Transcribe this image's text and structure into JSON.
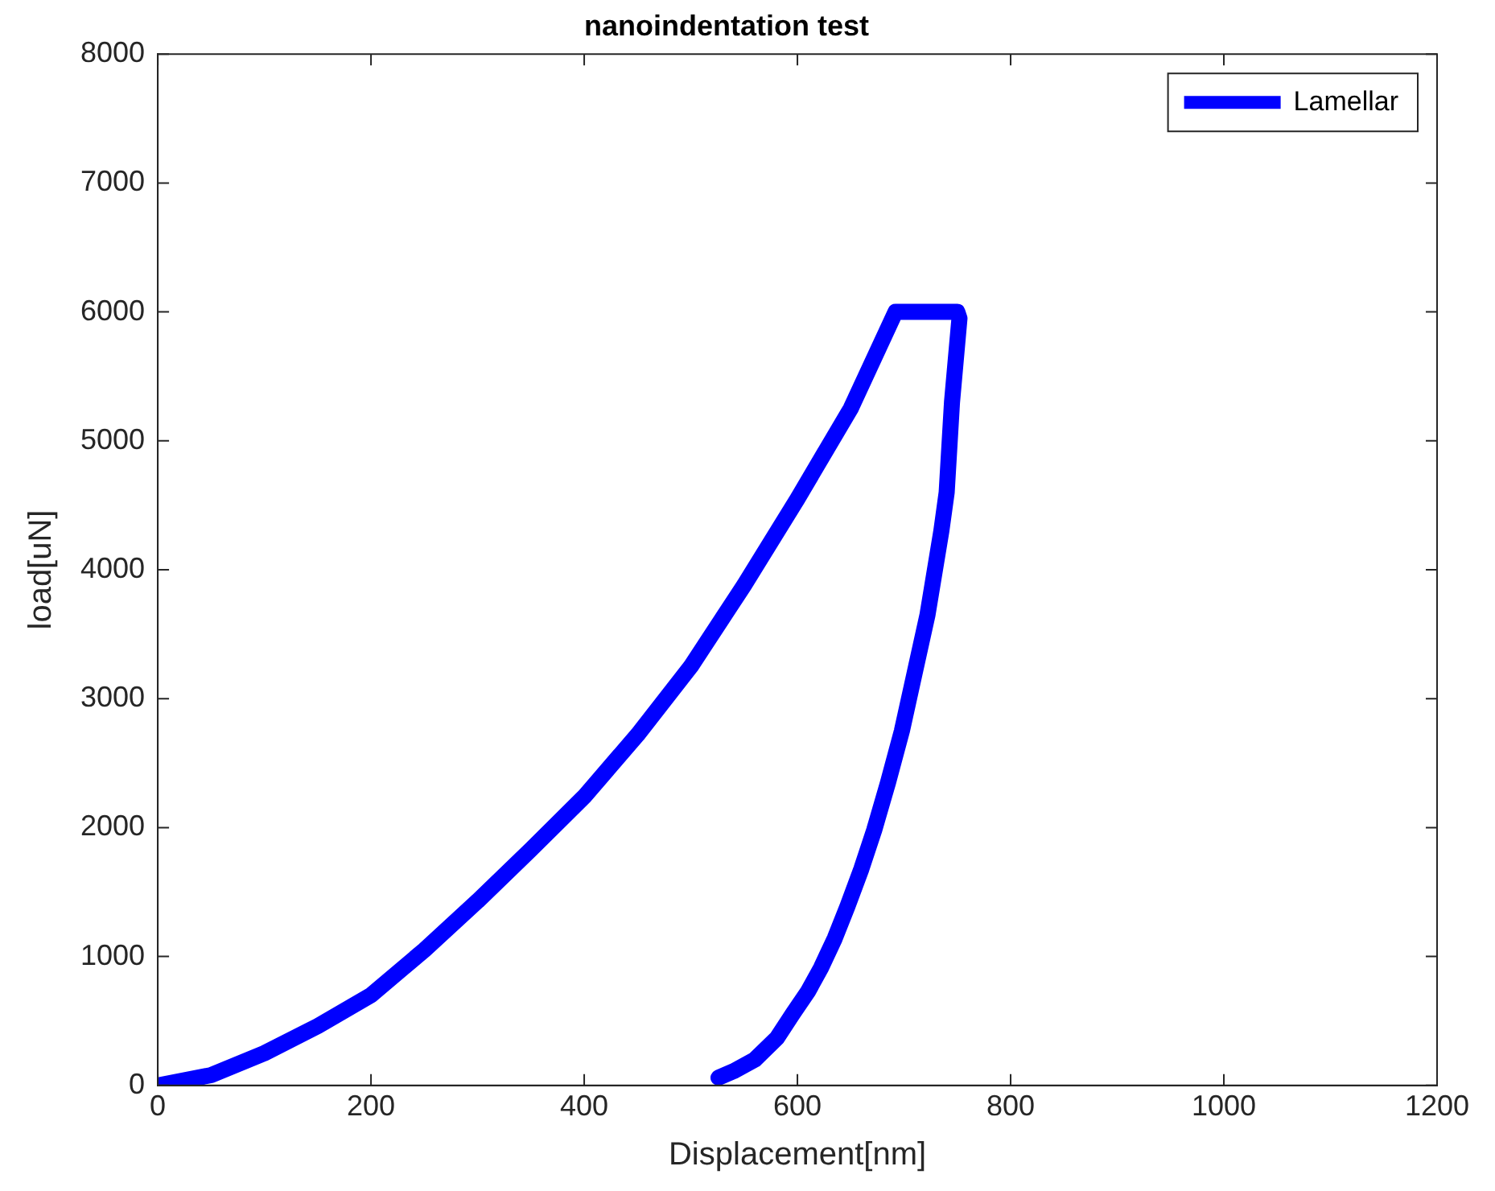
{
  "chart_data": {
    "type": "line",
    "title": "nanoindentation test",
    "xlabel": "Displacement[nm]",
    "ylabel": "load[uN]",
    "xlim": [
      0,
      1200
    ],
    "xticks": [
      0,
      200,
      400,
      600,
      800,
      1000,
      1200
    ],
    "ylim": [
      0,
      8000
    ],
    "yticks": [
      0,
      1000,
      2000,
      3000,
      4000,
      5000,
      6000,
      7000,
      8000
    ],
    "grid": false,
    "legend": "top right",
    "marker": "none",
    "line_style": "solid",
    "series": [
      {
        "name": "Lamellar",
        "color": "#0000ff",
        "x": [
          0,
          50,
          100,
          150,
          200,
          250,
          300,
          350,
          400,
          450,
          500,
          550,
          600,
          650,
          692,
          720,
          750,
          752,
          745,
          740,
          735,
          722,
          710,
          698,
          685,
          672,
          660,
          647,
          635,
          622,
          610,
          596,
          581,
          560,
          540,
          526
        ],
        "values": [
          0,
          80,
          250,
          460,
          700,
          1050,
          1430,
          1830,
          2240,
          2720,
          3250,
          3880,
          4550,
          5250,
          6000,
          6000,
          6000,
          5950,
          5300,
          4600,
          4300,
          3650,
          3200,
          2750,
          2350,
          1980,
          1680,
          1390,
          1140,
          910,
          730,
          560,
          370,
          200,
          110,
          60
        ]
      }
    ]
  }
}
